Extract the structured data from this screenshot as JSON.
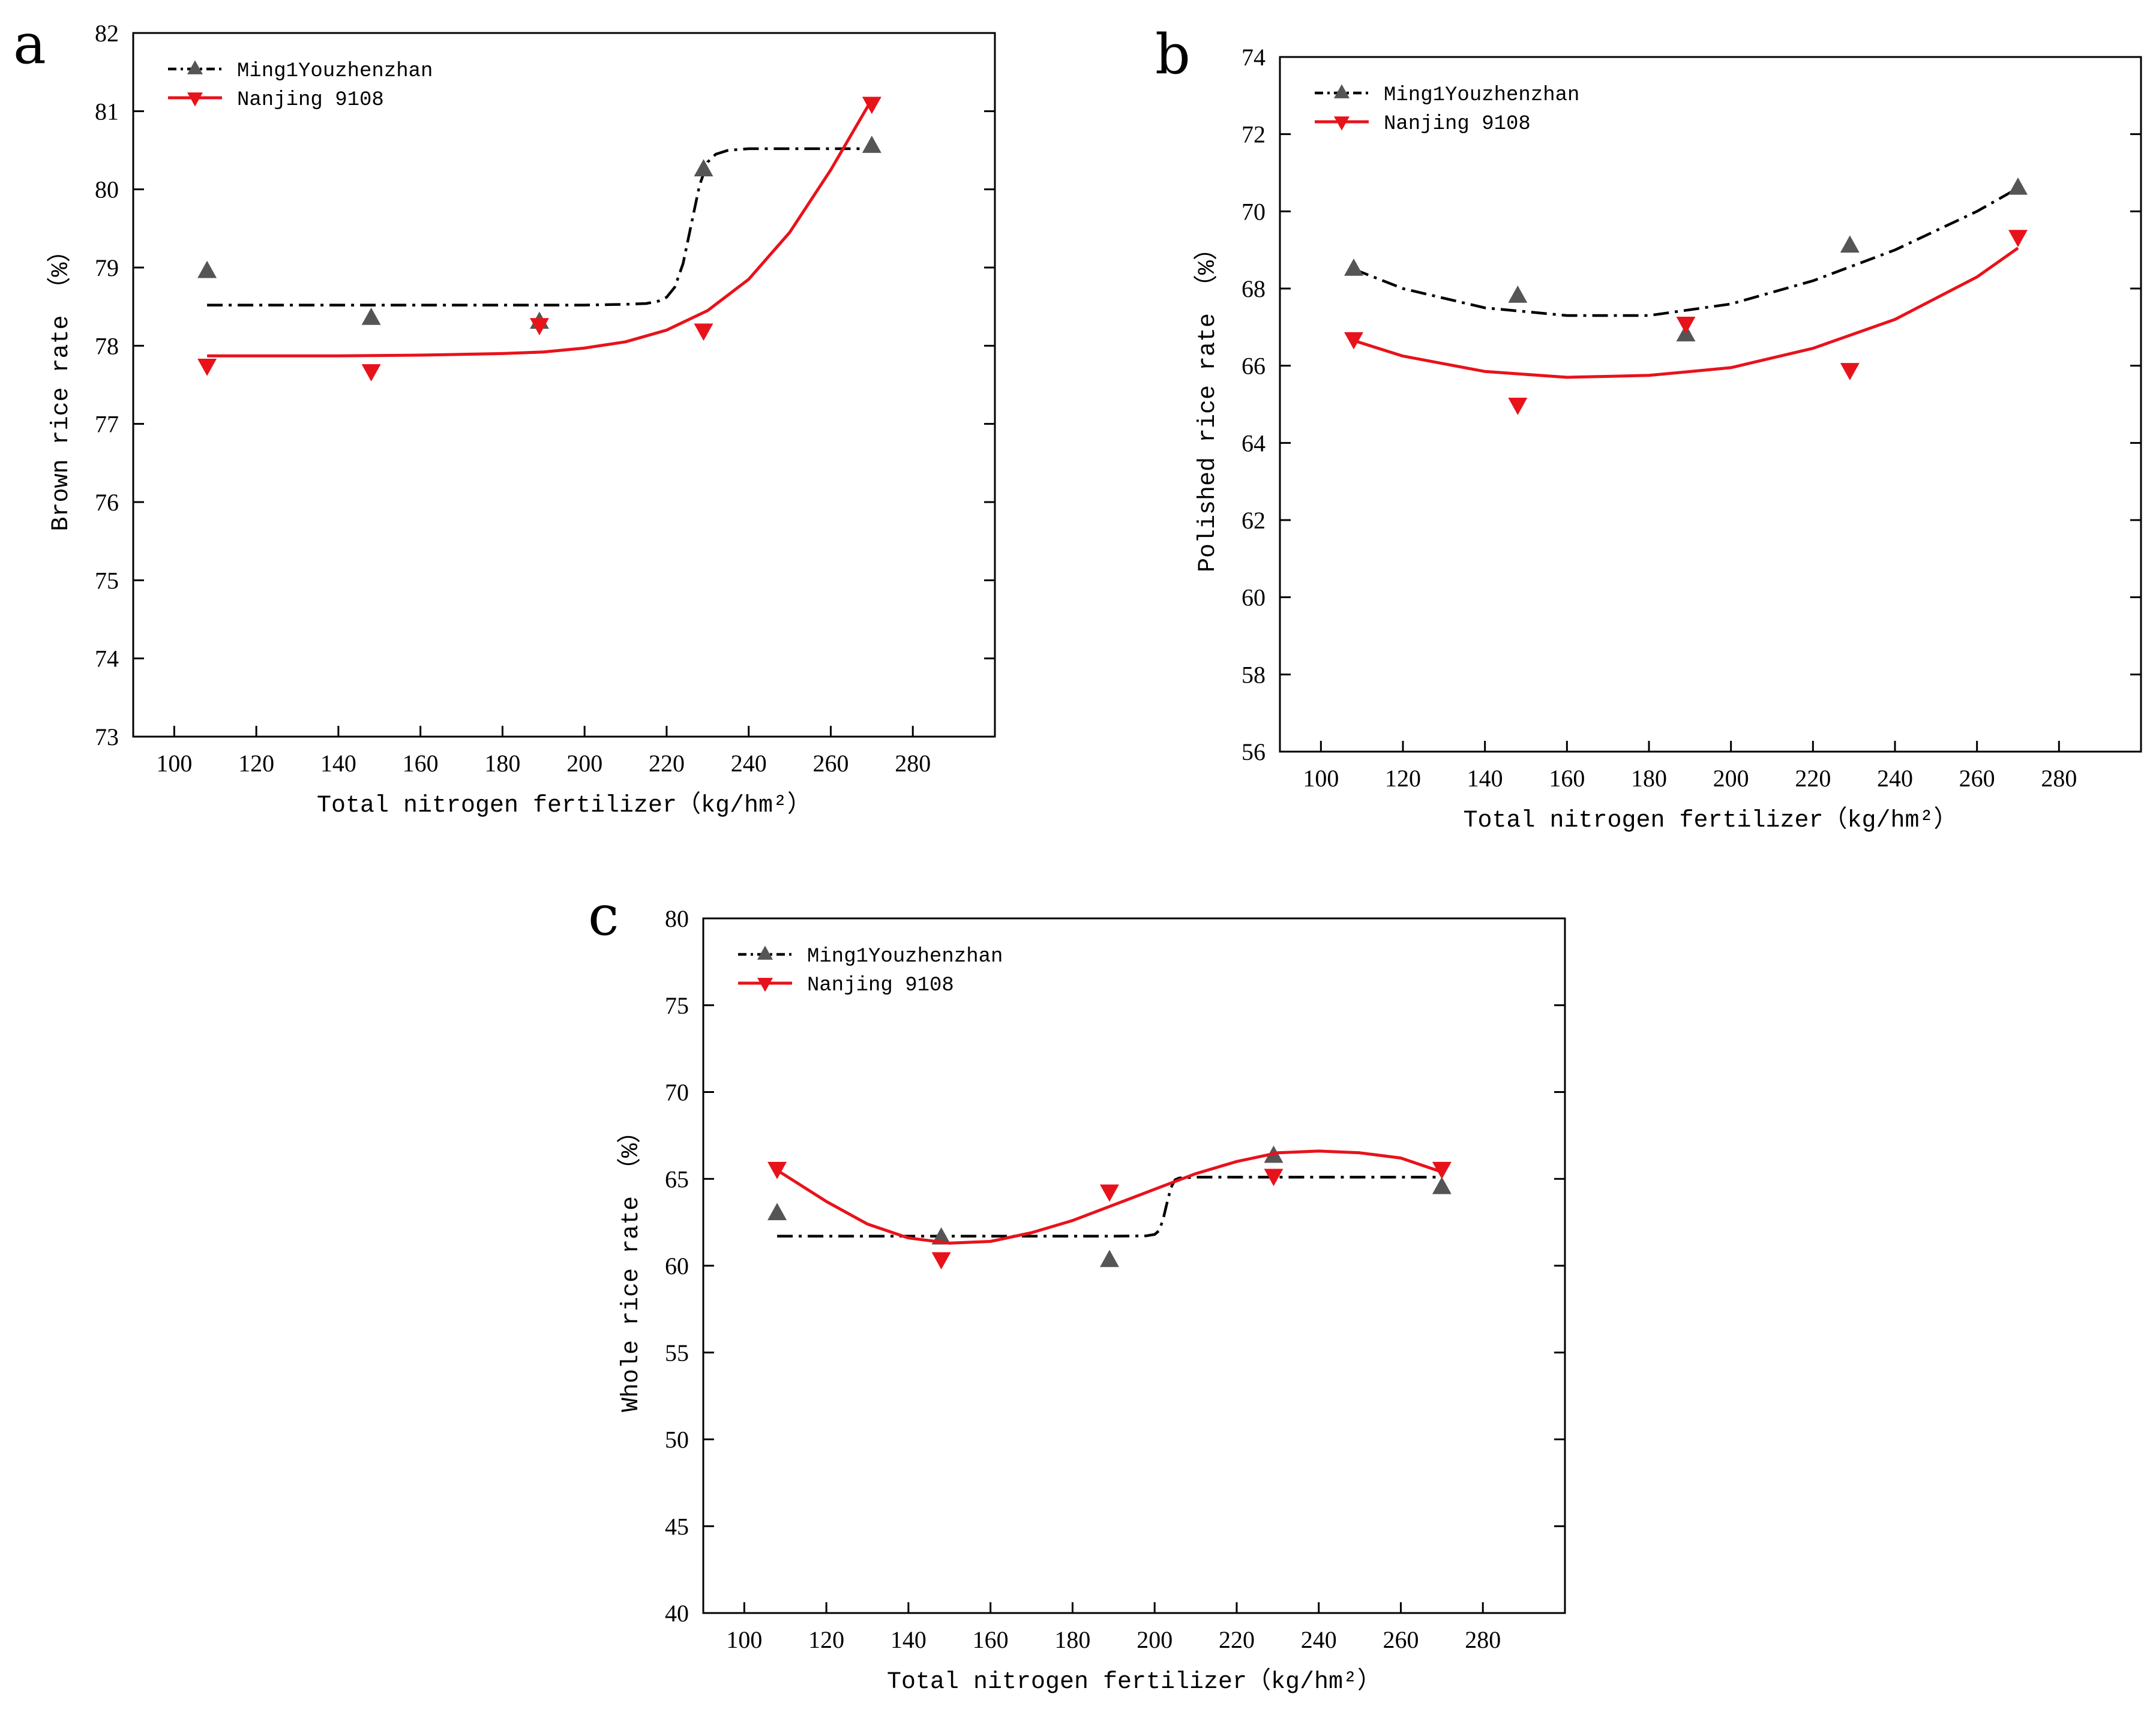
{
  "figure": {
    "background": "#ffffff"
  },
  "colors": {
    "ming": "#000000",
    "ming_marker": "#555555",
    "nanjing": "#e8121b"
  },
  "chart_data": [
    {
      "panel": "a",
      "type": "scatter",
      "xlabel": "Total nitrogen fertilizer（kg/hm²）",
      "ylabel": "Brown rice rate （%）",
      "xlim": [
        90,
        300
      ],
      "ylim": [
        73,
        82
      ],
      "xticks": [
        100,
        120,
        140,
        160,
        180,
        200,
        220,
        240,
        260,
        280
      ],
      "yticks": [
        73,
        74,
        75,
        76,
        77,
        78,
        79,
        80,
        81,
        82
      ],
      "legend_position": "top-left",
      "series": [
        {
          "name": "Ming1Youzhenzhan",
          "marker": "triangle-up",
          "x": [
            108,
            148,
            189,
            229,
            270
          ],
          "y": [
            78.95,
            78.35,
            78.3,
            80.25,
            80.55
          ],
          "fit": {
            "x": [
              108,
              120,
              140,
              160,
              180,
              200,
              210,
              215,
              218,
              220,
              222,
              224,
              226,
              228,
              230,
              232,
              235,
              240,
              250,
              260,
              270
            ],
            "y": [
              78.52,
              78.52,
              78.52,
              78.52,
              78.52,
              78.52,
              78.53,
              78.54,
              78.57,
              78.62,
              78.75,
              79.05,
              79.55,
              80.05,
              80.35,
              80.45,
              80.5,
              80.52,
              80.52,
              80.52,
              80.52
            ]
          }
        },
        {
          "name": "Nanjing 9108",
          "marker": "triangle-down",
          "x": [
            108,
            148,
            189,
            229,
            270
          ],
          "y": [
            77.75,
            77.68,
            78.27,
            78.2,
            81.1
          ],
          "fit": {
            "x": [
              108,
              120,
              140,
              160,
              180,
              190,
              200,
              210,
              220,
              230,
              240,
              250,
              260,
              265,
              270
            ],
            "y": [
              77.87,
              77.87,
              77.87,
              77.88,
              77.9,
              77.92,
              77.97,
              78.05,
              78.2,
              78.45,
              78.85,
              79.45,
              80.25,
              80.7,
              81.15
            ]
          }
        }
      ]
    },
    {
      "panel": "b",
      "type": "scatter",
      "xlabel": "Total nitrogen fertilizer（kg/hm²）",
      "ylabel": "Polished rice rate （%）",
      "xlim": [
        90,
        300
      ],
      "ylim": [
        56,
        74
      ],
      "xticks": [
        100,
        120,
        140,
        160,
        180,
        200,
        220,
        240,
        260,
        280
      ],
      "yticks": [
        56,
        58,
        60,
        62,
        64,
        66,
        68,
        70,
        72,
        74
      ],
      "legend_position": "top-left",
      "series": [
        {
          "name": "Ming1Youzhenzhan",
          "marker": "triangle-up",
          "x": [
            108,
            148,
            189,
            229,
            270
          ],
          "y": [
            68.5,
            67.8,
            66.8,
            69.1,
            70.6
          ],
          "fit": {
            "x": [
              108,
              120,
              140,
              160,
              180,
              200,
              220,
              240,
              260,
              270
            ],
            "y": [
              68.5,
              68.0,
              67.5,
              67.3,
              67.3,
              67.6,
              68.2,
              69.0,
              70.0,
              70.6
            ]
          }
        },
        {
          "name": "Nanjing 9108",
          "marker": "triangle-down",
          "x": [
            108,
            148,
            189,
            229,
            270
          ],
          "y": [
            66.7,
            65.0,
            67.1,
            65.9,
            69.35
          ],
          "fit": {
            "x": [
              108,
              120,
              140,
              160,
              180,
              200,
              220,
              240,
              260,
              270
            ],
            "y": [
              66.65,
              66.25,
              65.85,
              65.7,
              65.75,
              65.95,
              66.45,
              67.2,
              68.3,
              69.05
            ]
          }
        }
      ]
    },
    {
      "panel": "c",
      "type": "scatter",
      "xlabel": "Total nitrogen fertilizer（kg/hm²）",
      "ylabel": "Whole rice rate （%）",
      "xlim": [
        90,
        300
      ],
      "ylim": [
        40,
        80
      ],
      "xticks": [
        100,
        120,
        140,
        160,
        180,
        200,
        220,
        240,
        260,
        280
      ],
      "yticks": [
        40,
        45,
        50,
        55,
        60,
        65,
        70,
        75,
        80
      ],
      "legend_position": "top-left",
      "series": [
        {
          "name": "Ming1Youzhenzhan",
          "marker": "triangle-up",
          "x": [
            108,
            148,
            189,
            229,
            270
          ],
          "y": [
            63.0,
            61.6,
            60.3,
            66.3,
            64.5
          ],
          "fit": {
            "x": [
              108,
              150,
              190,
              198,
              200,
              201,
              202,
              203,
              204,
              205,
              206,
              210,
              230,
              250,
              270
            ],
            "y": [
              61.7,
              61.7,
              61.7,
              61.72,
              61.8,
              62.0,
              62.6,
              63.6,
              64.5,
              64.95,
              65.05,
              65.1,
              65.1,
              65.1,
              65.1
            ]
          }
        },
        {
          "name": "Nanjing 9108",
          "marker": "triangle-down",
          "x": [
            108,
            148,
            189,
            229,
            270
          ],
          "y": [
            65.6,
            60.4,
            64.3,
            65.2,
            65.6
          ],
          "fit": {
            "x": [
              108,
              120,
              130,
              140,
              150,
              160,
              170,
              180,
              190,
              200,
              210,
              220,
              230,
              240,
              250,
              260,
              270
            ],
            "y": [
              65.5,
              63.7,
              62.4,
              61.6,
              61.3,
              61.4,
              61.9,
              62.6,
              63.5,
              64.4,
              65.3,
              66.0,
              66.5,
              66.6,
              66.5,
              66.2,
              65.4
            ]
          }
        }
      ]
    }
  ]
}
